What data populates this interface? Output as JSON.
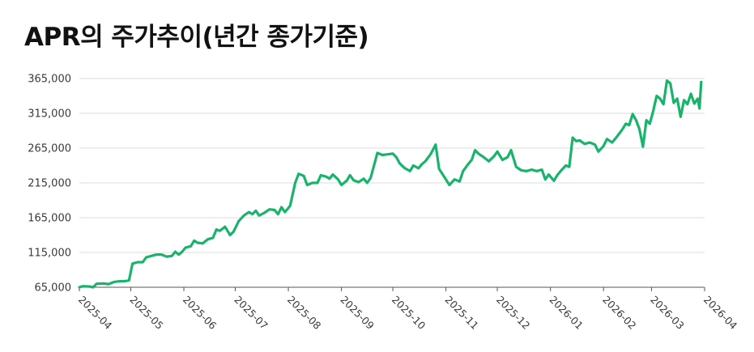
{
  "chart_data": {
    "type": "line",
    "title": "APR의 주가추이(년간 종가기준)",
    "xlabel": "",
    "ylabel": "",
    "ylim": [
      65000,
      365000
    ],
    "yticks": [
      "65,000",
      "115,000",
      "165,000",
      "215,000",
      "265,000",
      "315,000",
      "365,000"
    ],
    "ytick_values": [
      65000,
      115000,
      165000,
      215000,
      265000,
      315000,
      365000
    ],
    "xticks": [
      "2025-04",
      "2025-05",
      "2025-06",
      "2025-07",
      "2025-08",
      "2025-09",
      "2025-10",
      "2025-11",
      "2025-12",
      "2026-01",
      "2026-02",
      "2026-03",
      "2026-04"
    ],
    "grid": true,
    "legend": "none",
    "colors": {
      "line": "#19b46c",
      "grid": "#dddddd",
      "axis": "#555555"
    },
    "series": [
      {
        "values": [
          [
            "2025-04-01",
            65000
          ],
          [
            "2025-04-03",
            66500
          ],
          [
            "2025-04-07",
            66000
          ],
          [
            "2025-04-09",
            65000
          ],
          [
            "2025-04-11",
            70000
          ],
          [
            "2025-04-15",
            70500
          ],
          [
            "2025-04-18",
            69500
          ],
          [
            "2025-04-21",
            72500
          ],
          [
            "2025-04-24",
            73500
          ],
          [
            "2025-04-28",
            74000
          ],
          [
            "2025-04-30",
            75000
          ],
          [
            "2025-05-02",
            99000
          ],
          [
            "2025-05-05",
            101000
          ],
          [
            "2025-05-08",
            101000
          ],
          [
            "2025-05-10",
            108000
          ],
          [
            "2025-05-13",
            110000
          ],
          [
            "2025-05-16",
            112000
          ],
          [
            "2025-05-19",
            112000
          ],
          [
            "2025-05-22",
            109000
          ],
          [
            "2025-05-25",
            110000
          ],
          [
            "2025-05-27",
            116000
          ],
          [
            "2025-05-29",
            112000
          ],
          [
            "2025-05-31",
            116000
          ],
          [
            "2025-06-02",
            122000
          ],
          [
            "2025-06-05",
            124000
          ],
          [
            "2025-06-07",
            132000
          ],
          [
            "2025-06-09",
            129000
          ],
          [
            "2025-06-12",
            128000
          ],
          [
            "2025-06-15",
            134000
          ],
          [
            "2025-06-18",
            136000
          ],
          [
            "2025-06-20",
            148000
          ],
          [
            "2025-06-22",
            146000
          ],
          [
            "2025-06-25",
            152000
          ],
          [
            "2025-06-28",
            140000
          ],
          [
            "2025-06-30",
            145000
          ],
          [
            "2025-07-03",
            160000
          ],
          [
            "2025-07-06",
            168000
          ],
          [
            "2025-07-09",
            173000
          ],
          [
            "2025-07-11",
            170000
          ],
          [
            "2025-07-13",
            175000
          ],
          [
            "2025-07-15",
            168000
          ],
          [
            "2025-07-18",
            172000
          ],
          [
            "2025-07-21",
            177000
          ],
          [
            "2025-07-24",
            176000
          ],
          [
            "2025-07-26",
            170000
          ],
          [
            "2025-07-28",
            180000
          ],
          [
            "2025-07-30",
            173000
          ],
          [
            "2025-08-02",
            182000
          ],
          [
            "2025-08-05",
            215000
          ],
          [
            "2025-08-07",
            228000
          ],
          [
            "2025-08-10",
            225000
          ],
          [
            "2025-08-12",
            212000
          ],
          [
            "2025-08-15",
            215000
          ],
          [
            "2025-08-18",
            215000
          ],
          [
            "2025-08-20",
            226000
          ],
          [
            "2025-08-23",
            224000
          ],
          [
            "2025-08-25",
            221000
          ],
          [
            "2025-08-27",
            227000
          ],
          [
            "2025-08-30",
            220000
          ],
          [
            "2025-09-01",
            212000
          ],
          [
            "2025-09-04",
            218000
          ],
          [
            "2025-09-06",
            226000
          ],
          [
            "2025-09-08",
            219000
          ],
          [
            "2025-09-11",
            216000
          ],
          [
            "2025-09-14",
            221000
          ],
          [
            "2025-09-16",
            215000
          ],
          [
            "2025-09-18",
            222000
          ],
          [
            "2025-09-20",
            240000
          ],
          [
            "2025-09-22",
            258000
          ],
          [
            "2025-09-25",
            255000
          ],
          [
            "2025-09-28",
            256000
          ],
          [
            "2025-10-01",
            257000
          ],
          [
            "2025-10-03",
            252000
          ],
          [
            "2025-10-05",
            243000
          ],
          [
            "2025-10-08",
            236000
          ],
          [
            "2025-10-11",
            232000
          ],
          [
            "2025-10-13",
            240000
          ],
          [
            "2025-10-16",
            236000
          ],
          [
            "2025-10-18",
            242000
          ],
          [
            "2025-10-20",
            246000
          ],
          [
            "2025-10-23",
            256000
          ],
          [
            "2025-10-26",
            270000
          ],
          [
            "2025-10-28",
            235000
          ],
          [
            "2025-11-01",
            220000
          ],
          [
            "2025-11-03",
            212000
          ],
          [
            "2025-11-06",
            220000
          ],
          [
            "2025-11-09",
            217000
          ],
          [
            "2025-11-11",
            232000
          ],
          [
            "2025-11-14",
            242000
          ],
          [
            "2025-11-16",
            248000
          ],
          [
            "2025-11-18",
            262000
          ],
          [
            "2025-11-20",
            257000
          ],
          [
            "2025-11-23",
            252000
          ],
          [
            "2025-11-26",
            246000
          ],
          [
            "2025-11-29",
            253000
          ],
          [
            "2025-12-01",
            260000
          ],
          [
            "2025-12-04",
            248000
          ],
          [
            "2025-12-07",
            252000
          ],
          [
            "2025-12-09",
            262000
          ],
          [
            "2025-12-12",
            238000
          ],
          [
            "2025-12-15",
            233000
          ],
          [
            "2025-12-18",
            232000
          ],
          [
            "2025-12-21",
            234000
          ],
          [
            "2025-12-24",
            232000
          ],
          [
            "2025-12-27",
            234000
          ],
          [
            "2025-12-29",
            220000
          ],
          [
            "2025-12-31",
            227000
          ],
          [
            "2026-01-03",
            218000
          ],
          [
            "2026-01-05",
            226000
          ],
          [
            "2026-01-07",
            232000
          ],
          [
            "2026-01-10",
            240000
          ],
          [
            "2026-01-12",
            238000
          ],
          [
            "2026-01-14",
            280000
          ],
          [
            "2026-01-16",
            275000
          ],
          [
            "2026-01-18",
            276000
          ],
          [
            "2026-01-21",
            271000
          ],
          [
            "2026-01-24",
            273000
          ],
          [
            "2026-01-27",
            270000
          ],
          [
            "2026-01-29",
            260000
          ],
          [
            "2026-02-01",
            268000
          ],
          [
            "2026-02-03",
            278000
          ],
          [
            "2026-02-06",
            273000
          ],
          [
            "2026-02-09",
            282000
          ],
          [
            "2026-02-12",
            292000
          ],
          [
            "2026-02-14",
            300000
          ],
          [
            "2026-02-16",
            298000
          ],
          [
            "2026-02-18",
            314000
          ],
          [
            "2026-02-20",
            305000
          ],
          [
            "2026-02-22",
            292000
          ],
          [
            "2026-02-24",
            267000
          ],
          [
            "2026-02-26",
            305000
          ],
          [
            "2026-02-28",
            300000
          ],
          [
            "2026-03-02",
            318000
          ],
          [
            "2026-03-04",
            340000
          ],
          [
            "2026-03-06",
            336000
          ],
          [
            "2026-03-08",
            328000
          ],
          [
            "2026-03-10",
            362000
          ],
          [
            "2026-03-12",
            358000
          ],
          [
            "2026-03-14",
            330000
          ],
          [
            "2026-03-16",
            336000
          ],
          [
            "2026-03-18",
            310000
          ],
          [
            "2026-03-20",
            334000
          ],
          [
            "2026-03-22",
            328000
          ],
          [
            "2026-03-24",
            343000
          ],
          [
            "2026-03-26",
            329000
          ],
          [
            "2026-03-28",
            336000
          ],
          [
            "2026-03-29",
            322000
          ],
          [
            "2026-03-30",
            360000
          ]
        ]
      }
    ]
  }
}
